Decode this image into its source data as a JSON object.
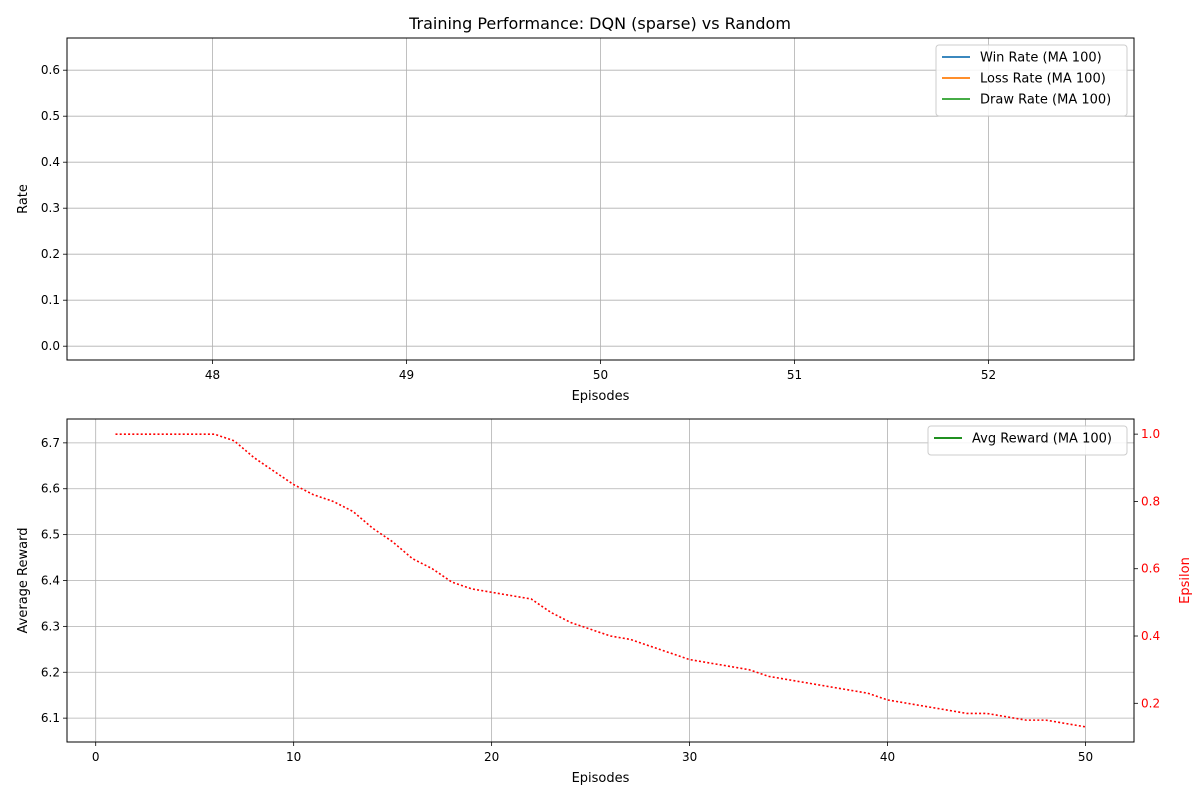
{
  "chart_data": [
    {
      "type": "line",
      "title": "Training Performance: DQN (sparse) vs Random",
      "xlabel": "Episodes",
      "ylabel": "Rate",
      "xlim": [
        47.25,
        52.75
      ],
      "ylim": [
        -0.03,
        0.67
      ],
      "xticks": [
        48,
        49,
        50,
        51,
        52
      ],
      "yticks": [
        0.0,
        0.1,
        0.2,
        0.3,
        0.4,
        0.5,
        0.6
      ],
      "grid": true,
      "legend_position": "top-right",
      "series": [
        {
          "name": "Win Rate (MA 100)",
          "color": "#1f77b4",
          "x": [],
          "values": []
        },
        {
          "name": "Loss Rate (MA 100)",
          "color": "#ff7f0e",
          "x": [],
          "values": []
        },
        {
          "name": "Draw Rate (MA 100)",
          "color": "#2ca02c",
          "x": [],
          "values": []
        }
      ]
    },
    {
      "type": "line",
      "xlabel": "Episodes",
      "ylabel": "Average Reward",
      "y2label": "Epsilon",
      "xlim": [
        -1.45,
        52.45
      ],
      "ylim": [
        6.048,
        6.752
      ],
      "y2lim": [
        0.085,
        1.045
      ],
      "xticks": [
        0,
        10,
        20,
        30,
        40,
        50
      ],
      "yticks": [
        6.1,
        6.2,
        6.3,
        6.4,
        6.5,
        6.6,
        6.7
      ],
      "y2ticks": [
        0.2,
        0.4,
        0.6,
        0.8,
        1.0
      ],
      "grid": true,
      "legend_position": "top-right",
      "series": [
        {
          "name": "Avg Reward (MA 100)",
          "color": "#008000",
          "axis": "left",
          "x": [],
          "values": []
        }
      ],
      "secondary_series": {
        "color": "#ff0000",
        "axis": "right",
        "style": "dotted",
        "x": [
          1,
          2,
          3,
          4,
          5,
          6,
          7,
          8,
          9,
          10,
          11,
          12,
          13,
          14,
          15,
          16,
          17,
          18,
          19,
          20,
          21,
          22,
          23,
          24,
          25,
          26,
          27,
          28,
          29,
          30,
          31,
          32,
          33,
          34,
          35,
          36,
          37,
          38,
          39,
          40,
          41,
          42,
          43,
          44,
          45,
          46,
          47,
          48,
          49,
          50
        ],
        "values": [
          1.0,
          1.0,
          1.0,
          1.0,
          1.0,
          1.0,
          0.98,
          0.93,
          0.89,
          0.85,
          0.82,
          0.8,
          0.77,
          0.72,
          0.68,
          0.63,
          0.6,
          0.56,
          0.54,
          0.53,
          0.52,
          0.51,
          0.47,
          0.44,
          0.42,
          0.4,
          0.39,
          0.37,
          0.35,
          0.33,
          0.32,
          0.31,
          0.3,
          0.28,
          0.27,
          0.26,
          0.25,
          0.24,
          0.23,
          0.21,
          0.2,
          0.19,
          0.18,
          0.17,
          0.17,
          0.16,
          0.15,
          0.15,
          0.14,
          0.13
        ]
      }
    }
  ]
}
